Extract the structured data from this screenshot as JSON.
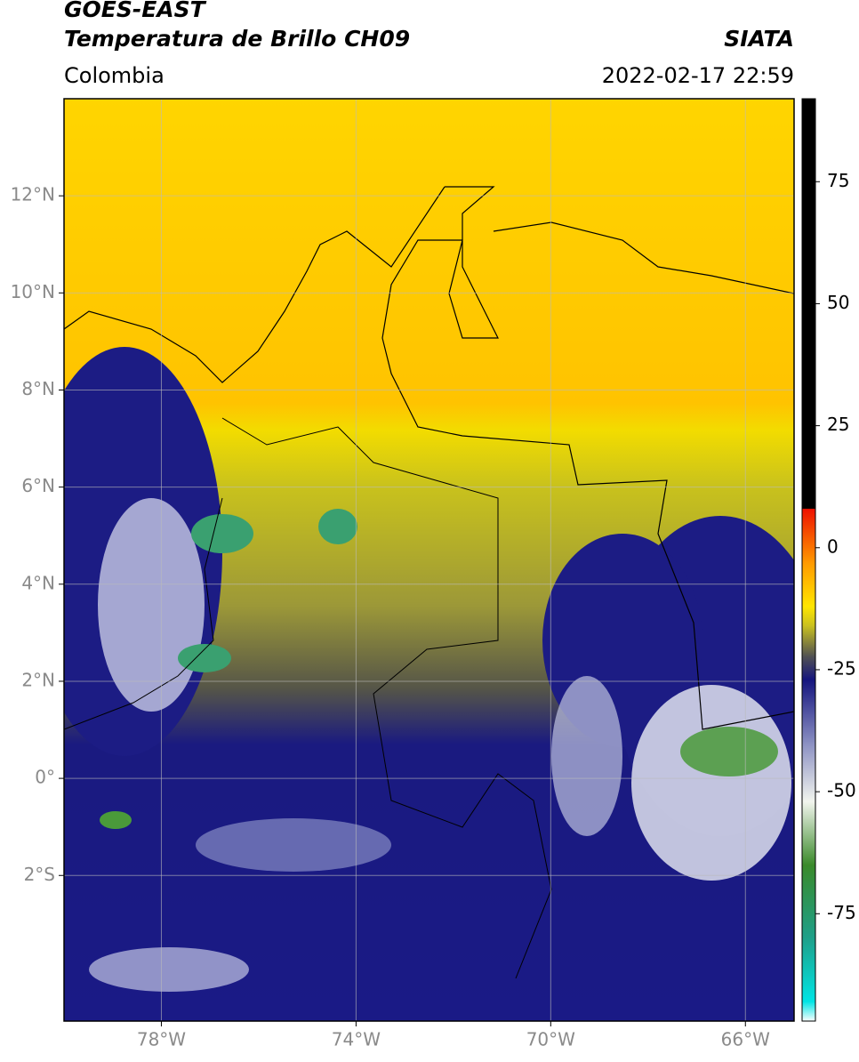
{
  "header": {
    "title": "GOES-EAST",
    "subtitle": "Temperatura de Brillo CH09",
    "source": "SIATA",
    "region": "Colombia",
    "datetime": "2022-02-17 22:59"
  },
  "map": {
    "xlim": [
      -80,
      -65
    ],
    "ylim": [
      -5,
      14
    ],
    "xticks": [
      {
        "value": -78,
        "label": "78°W"
      },
      {
        "value": -74,
        "label": "74°W"
      },
      {
        "value": -70,
        "label": "70°W"
      },
      {
        "value": -66,
        "label": "66°W"
      }
    ],
    "yticks": [
      {
        "value": 12,
        "label": "12°N"
      },
      {
        "value": 10,
        "label": "10°N"
      },
      {
        "value": 8,
        "label": "8°N"
      },
      {
        "value": 6,
        "label": "6°N"
      },
      {
        "value": 4,
        "label": "4°N"
      },
      {
        "value": 2,
        "label": "2°N"
      },
      {
        "value": 0,
        "label": "0°"
      },
      {
        "value": -2,
        "label": "2°S"
      }
    ],
    "grid": true
  },
  "colorbar": {
    "clim": [
      -97,
      92
    ],
    "ticks": [
      75,
      50,
      25,
      0,
      -25,
      -50,
      -75
    ],
    "colormap": [
      {
        "value": -97,
        "color": "#ffffff"
      },
      {
        "value": -93,
        "color": "#00e5e5"
      },
      {
        "value": -80,
        "color": "#1ea08a"
      },
      {
        "value": -65,
        "color": "#3a8a2a"
      },
      {
        "value": -52,
        "color": "#f2f5ee"
      },
      {
        "value": -40,
        "color": "#8a8fc2"
      },
      {
        "value": -27,
        "color": "#14147e"
      },
      {
        "value": -22,
        "color": "#555550"
      },
      {
        "value": -16,
        "color": "#c8c020"
      },
      {
        "value": -12,
        "color": "#ffe600"
      },
      {
        "value": -3,
        "color": "#ff9900"
      },
      {
        "value": 8,
        "color": "#ee1100"
      },
      {
        "value": 8.1,
        "color": "#000000"
      },
      {
        "value": 92,
        "color": "#000000"
      }
    ]
  }
}
